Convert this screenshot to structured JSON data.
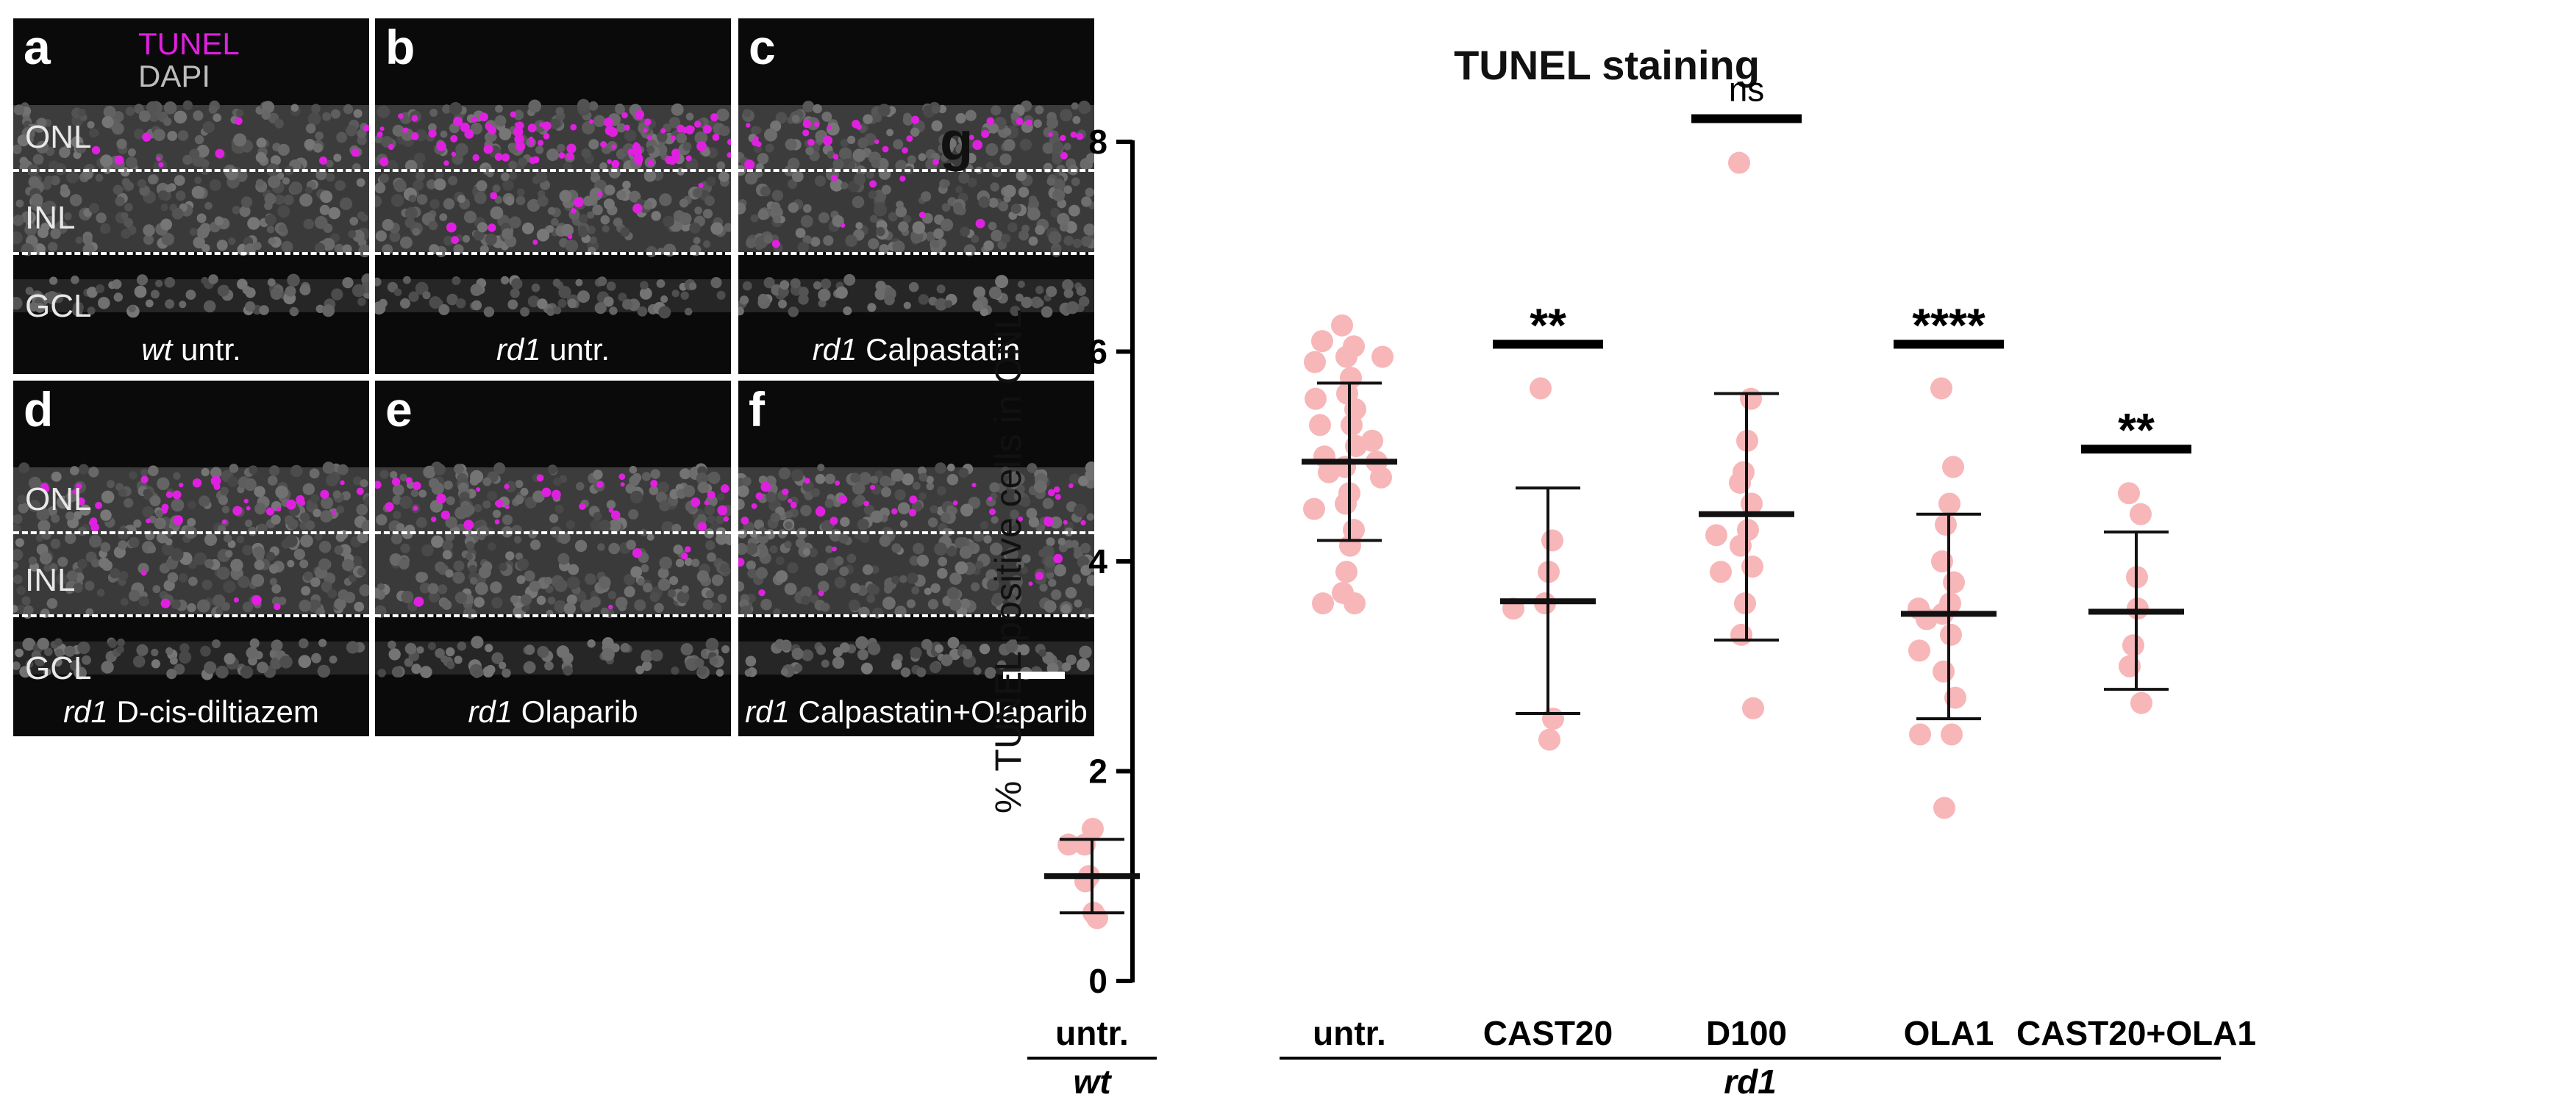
{
  "legend": {
    "tunel": "TUNEL",
    "dapi": "DAPI"
  },
  "panels": [
    {
      "letter": "a",
      "caption_italic": "wt",
      "caption_rest": " untr.",
      "layers": [
        "ONL",
        "INL",
        "GCL"
      ],
      "tunel_density": "low"
    },
    {
      "letter": "b",
      "caption_italic": "rd1",
      "caption_rest": " untr.",
      "layers": [],
      "tunel_density": "high"
    },
    {
      "letter": "c",
      "caption_italic": "rd1",
      "caption_rest": " Calpastatin",
      "layers": [],
      "tunel_density": "medium"
    },
    {
      "letter": "d",
      "caption_italic": "rd1",
      "caption_rest": " D-cis-diltiazem",
      "layers": [
        "ONL",
        "INL",
        "GCL"
      ],
      "tunel_density": "medium"
    },
    {
      "letter": "e",
      "caption_italic": "rd1",
      "caption_rest": " Olaparib",
      "layers": [],
      "tunel_density": "medium"
    },
    {
      "letter": "f",
      "caption_italic": "rd1",
      "caption_rest": " Calpastatin+Olaparib",
      "layers": [],
      "tunel_density": "medium"
    }
  ],
  "colors": {
    "tunel": "#e020e0",
    "dapi": "#bdbdbd",
    "points": "#f7b6b8",
    "text": "#111111"
  },
  "chart_data": {
    "type": "scatter",
    "panel_letter": "g",
    "title": "TUNEL staining",
    "ylabel": "% TUNEL positive cells in ONL",
    "ylim": [
      0,
      8
    ],
    "yticks": [
      0,
      2,
      4,
      6,
      8
    ],
    "groups": [
      {
        "label": "untr.",
        "mean": 1.0,
        "sd_low": 0.65,
        "sd_high": 1.35,
        "significance": "",
        "values": [
          1.3,
          1.3,
          1.45,
          1.0,
          0.95,
          0.6,
          0.65
        ]
      },
      {
        "label": "untr.",
        "mean": 4.95,
        "sd_low": 4.2,
        "sd_high": 5.7,
        "significance": "",
        "values": [
          6.25,
          6.05,
          6.1,
          5.95,
          5.9,
          5.95,
          5.75,
          5.6,
          5.55,
          5.45,
          5.3,
          5.3,
          5.15,
          5.1,
          5.0,
          4.95,
          4.9,
          4.85,
          4.8,
          4.65,
          4.55,
          4.5,
          4.3,
          4.15,
          3.9,
          3.7,
          3.6,
          3.6
        ]
      },
      {
        "label": "CAST20",
        "mean": 3.62,
        "sd_low": 2.55,
        "sd_high": 4.7,
        "significance": "**",
        "values": [
          5.65,
          4.2,
          3.9,
          3.6,
          3.55,
          2.5,
          2.3
        ]
      },
      {
        "label": "D100",
        "mean": 4.45,
        "sd_low": 3.25,
        "sd_high": 5.6,
        "significance": "ns",
        "values": [
          7.8,
          5.55,
          5.15,
          4.85,
          4.75,
          4.55,
          4.3,
          4.25,
          4.15,
          3.95,
          3.9,
          3.6,
          3.3,
          2.6
        ]
      },
      {
        "label": "OLA1",
        "mean": 3.5,
        "sd_low": 2.5,
        "sd_high": 4.45,
        "significance": "****",
        "values": [
          5.65,
          4.9,
          4.55,
          4.35,
          4.0,
          3.8,
          3.6,
          3.55,
          3.5,
          3.45,
          3.3,
          3.15,
          2.95,
          2.7,
          2.35,
          2.35,
          1.65
        ]
      },
      {
        "label": "CAST20+OLA1",
        "mean": 3.52,
        "sd_low": 2.78,
        "sd_high": 4.28,
        "significance": "**",
        "values": [
          4.65,
          4.45,
          3.85,
          3.2,
          3.0,
          2.65,
          3.55
        ]
      }
    ],
    "genotype_labels": [
      {
        "label": "wt",
        "groups": [
          0
        ]
      },
      {
        "label": "rd1",
        "groups": [
          1,
          2,
          3,
          4,
          5
        ]
      }
    ]
  }
}
